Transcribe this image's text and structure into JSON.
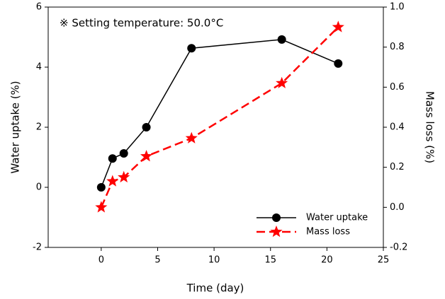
{
  "chart_data": {
    "type": "line",
    "annotation": "※ Setting temperature: 50.0°C",
    "x_label": "Time (day)",
    "y_label": "Water uptake (%)",
    "y2_label": "Mass loss (%)",
    "xlim": [
      -4.7,
      25
    ],
    "xticks": [
      0,
      5,
      10,
      15,
      20,
      25
    ],
    "ylim": [
      -2,
      6
    ],
    "yticks": [
      -2,
      0,
      2,
      4,
      6
    ],
    "y2lim": [
      -0.2,
      1.0
    ],
    "y2ticks": [
      -0.2,
      {
        "value": 0,
        "label": "0.0"
      },
      0.2,
      0.4,
      0.6,
      0.8,
      {
        "value": 1,
        "label": "1.0"
      }
    ],
    "legend": "lower right",
    "series": [
      {
        "name": "Water uptake",
        "color": "#000000",
        "marker": "circle",
        "dash": "solid",
        "x": [
          0,
          1,
          2,
          4,
          8,
          16,
          21
        ],
        "values": [
          0,
          0.96,
          1.13,
          2.0,
          4.63,
          4.92,
          4.12
        ]
      },
      {
        "name": "Mass loss",
        "color": "#ff0000",
        "marker": "star",
        "dash": "dashed",
        "axis": "y2",
        "x": [
          0,
          1,
          2,
          4,
          8,
          16,
          21
        ],
        "values": [
          0.0,
          0.13,
          0.15,
          0.255,
          0.345,
          0.62,
          0.9
        ]
      }
    ]
  }
}
